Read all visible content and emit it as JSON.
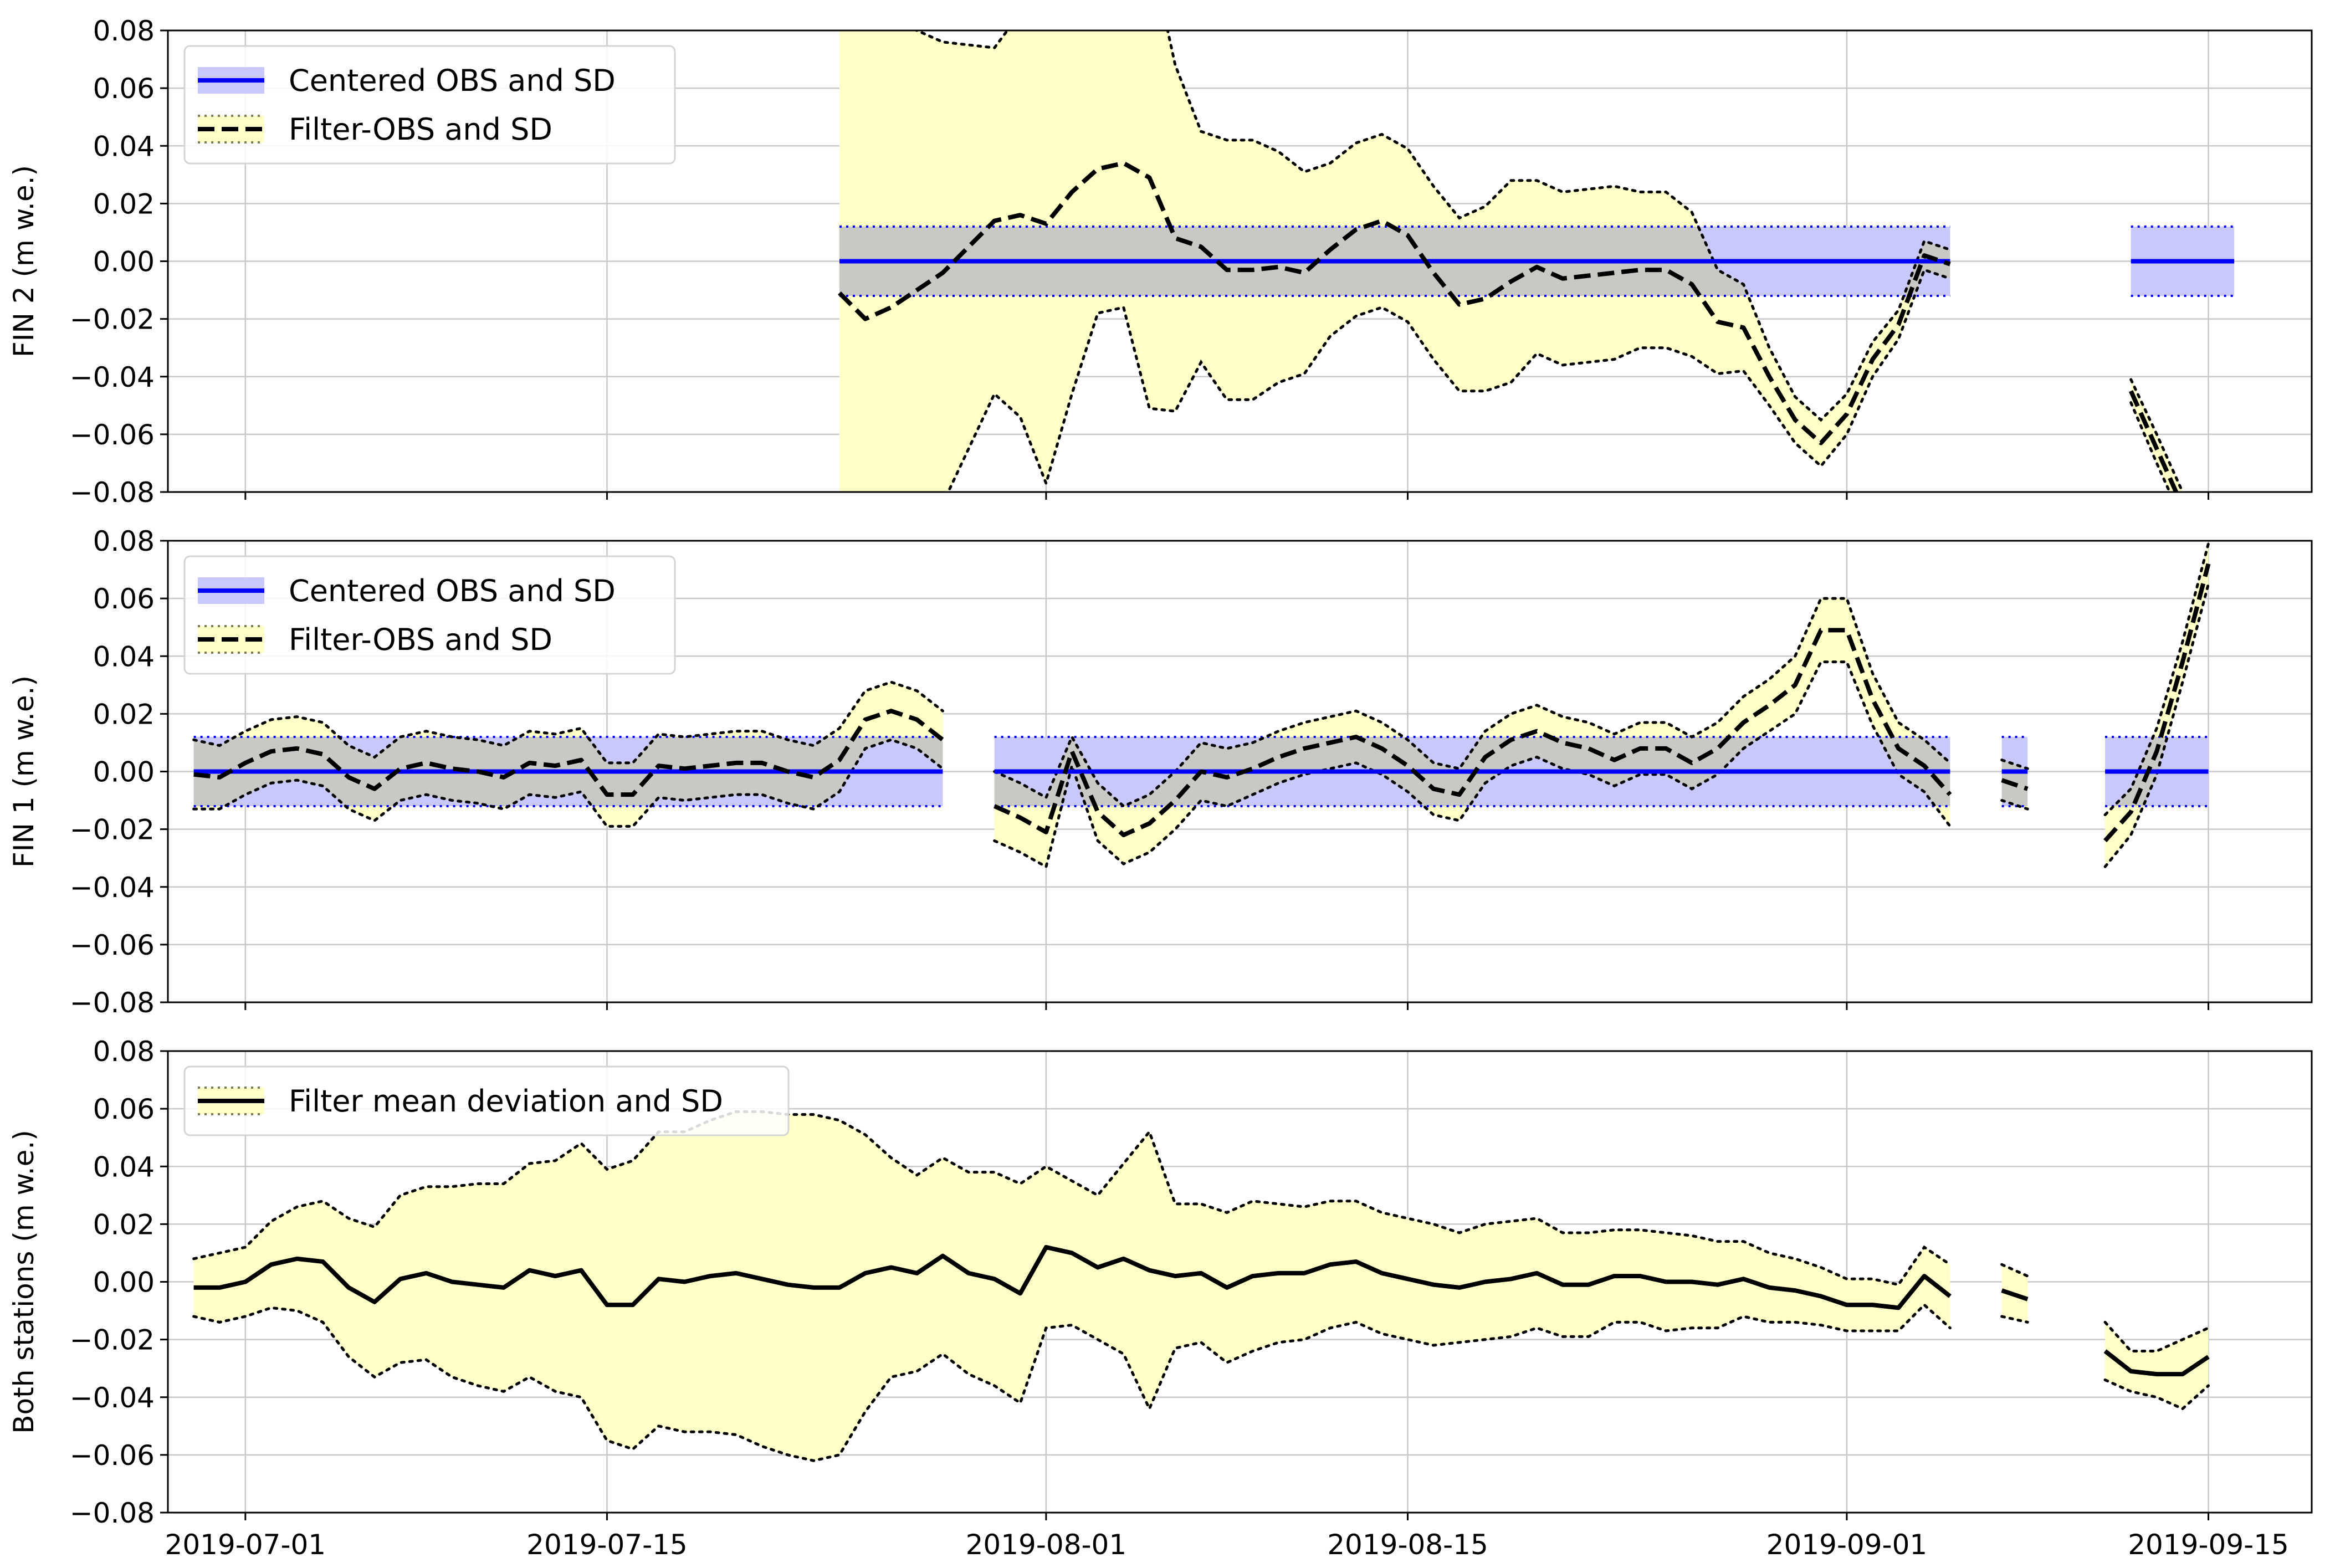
{
  "colors": {
    "centered_line": "#0000ff",
    "centered_band": "#c8c8fa",
    "filter_band": "#ffffc8",
    "overlap_band": "#d8d6c8",
    "filter_line": "#000000",
    "grid": "#c8c8c8"
  },
  "chart_data": [
    {
      "type": "line",
      "ylabel": "FIN 2 (m w.e.)",
      "ylim": [
        -0.08,
        0.08
      ],
      "yticks": [
        "0.08",
        "0.06",
        "0.04",
        "0.02",
        "0.00",
        "−0.02",
        "−0.04",
        "−0.06",
        "−0.08"
      ],
      "xlim": [
        "2019-06-28",
        "2019-09-19"
      ],
      "xticks": [
        "2019-07-01",
        "2019-07-15",
        "2019-08-01",
        "2019-08-15",
        "2019-09-01",
        "2019-09-15"
      ],
      "grid": true,
      "legend_position": "top-left",
      "legend": [
        "Centered OBS and SD",
        "Filter-OBS and SD"
      ],
      "centered_segments": [
        {
          "x": [
            "2019-07-24",
            "2019-09-05"
          ],
          "value": 0.0,
          "sd": 0.012
        },
        {
          "x": [
            "2019-09-12",
            "2019-09-16"
          ],
          "value": 0.0,
          "sd": 0.012
        }
      ],
      "filter_segments": [
        {
          "x": [
            "2019-07-24",
            "2019-07-25",
            "2019-07-26",
            "2019-07-27",
            "2019-07-28",
            "2019-07-29",
            "2019-07-30",
            "2019-07-31",
            "2019-08-01",
            "2019-08-02",
            "2019-08-03",
            "2019-08-04",
            "2019-08-05",
            "2019-08-06",
            "2019-08-07",
            "2019-08-08",
            "2019-08-09",
            "2019-08-10",
            "2019-08-11",
            "2019-08-12",
            "2019-08-13",
            "2019-08-14",
            "2019-08-15",
            "2019-08-16",
            "2019-08-17",
            "2019-08-18",
            "2019-08-19",
            "2019-08-20",
            "2019-08-21",
            "2019-08-22",
            "2019-08-23",
            "2019-08-24",
            "2019-08-25",
            "2019-08-26",
            "2019-08-27",
            "2019-08-28",
            "2019-08-29",
            "2019-08-30",
            "2019-08-31",
            "2019-09-01",
            "2019-09-02",
            "2019-09-03",
            "2019-09-04",
            "2019-09-05"
          ],
          "y": [
            -0.011,
            -0.02,
            -0.016,
            -0.01,
            -0.004,
            0.005,
            0.014,
            0.016,
            0.013,
            0.024,
            0.032,
            0.034,
            0.029,
            0.008,
            0.005,
            -0.003,
            -0.003,
            -0.002,
            -0.004,
            0.004,
            0.011,
            0.014,
            0.009,
            -0.004,
            -0.015,
            -0.013,
            -0.007,
            -0.002,
            -0.006,
            -0.005,
            -0.004,
            -0.003,
            -0.003,
            -0.008,
            -0.021,
            -0.023,
            -0.04,
            -0.055,
            -0.063,
            -0.053,
            -0.034,
            -0.022,
            0.002,
            -0.001
          ],
          "sd": [
            0.12,
            0.1,
            0.1,
            0.09,
            0.08,
            0.07,
            0.06,
            0.07,
            0.09,
            0.07,
            0.05,
            0.05,
            0.08,
            0.06,
            0.04,
            0.045,
            0.045,
            0.04,
            0.035,
            0.03,
            0.03,
            0.03,
            0.03,
            0.03,
            0.03,
            0.032,
            0.035,
            0.03,
            0.03,
            0.03,
            0.03,
            0.027,
            0.027,
            0.025,
            0.018,
            0.015,
            0.01,
            0.008,
            0.008,
            0.007,
            0.006,
            0.005,
            0.005,
            0.005
          ]
        },
        {
          "x": [
            "2019-09-12",
            "2019-09-13",
            "2019-09-14"
          ],
          "y": [
            -0.045,
            -0.065,
            -0.085
          ],
          "sd": [
            0.004,
            0.005,
            0.005
          ]
        }
      ]
    },
    {
      "type": "line",
      "ylabel": "FIN 1 (m w.e.)",
      "ylim": [
        -0.08,
        0.08
      ],
      "yticks": [
        "0.08",
        "0.06",
        "0.04",
        "0.02",
        "0.00",
        "−0.02",
        "−0.04",
        "−0.06",
        "−0.08"
      ],
      "xlim": [
        "2019-06-28",
        "2019-09-19"
      ],
      "xticks": [
        "2019-07-01",
        "2019-07-15",
        "2019-08-01",
        "2019-08-15",
        "2019-09-01",
        "2019-09-15"
      ],
      "grid": true,
      "legend_position": "top-left",
      "legend": [
        "Centered OBS and SD",
        "Filter-OBS and SD"
      ],
      "centered_segments": [
        {
          "x": [
            "2019-06-29",
            "2019-07-28"
          ],
          "value": 0.0,
          "sd": 0.012
        },
        {
          "x": [
            "2019-07-30",
            "2019-09-05"
          ],
          "value": 0.0,
          "sd": 0.012
        },
        {
          "x": [
            "2019-09-07",
            "2019-09-08"
          ],
          "value": 0.0,
          "sd": 0.012
        },
        {
          "x": [
            "2019-09-11",
            "2019-09-15"
          ],
          "value": 0.0,
          "sd": 0.012
        }
      ],
      "filter_segments": [
        {
          "x": [
            "2019-06-29",
            "2019-06-30",
            "2019-07-01",
            "2019-07-02",
            "2019-07-03",
            "2019-07-04",
            "2019-07-05",
            "2019-07-06",
            "2019-07-07",
            "2019-07-08",
            "2019-07-09",
            "2019-07-10",
            "2019-07-11",
            "2019-07-12",
            "2019-07-13",
            "2019-07-14",
            "2019-07-15",
            "2019-07-16",
            "2019-07-17",
            "2019-07-18",
            "2019-07-19",
            "2019-07-20",
            "2019-07-21",
            "2019-07-22",
            "2019-07-23",
            "2019-07-24",
            "2019-07-25",
            "2019-07-26",
            "2019-07-27",
            "2019-07-28"
          ],
          "y": [
            -0.001,
            -0.002,
            0.003,
            0.007,
            0.008,
            0.006,
            -0.002,
            -0.006,
            0.001,
            0.003,
            0.001,
            0.0,
            -0.002,
            0.003,
            0.002,
            0.004,
            -0.008,
            -0.008,
            0.002,
            0.001,
            0.002,
            0.003,
            0.003,
            0.0,
            -0.002,
            0.004,
            0.018,
            0.021,
            0.018,
            0.011
          ],
          "sd": [
            0.012,
            0.011,
            0.011,
            0.011,
            0.011,
            0.011,
            0.011,
            0.011,
            0.011,
            0.011,
            0.011,
            0.011,
            0.011,
            0.011,
            0.011,
            0.011,
            0.011,
            0.011,
            0.011,
            0.011,
            0.011,
            0.011,
            0.011,
            0.011,
            0.011,
            0.011,
            0.01,
            0.01,
            0.01,
            0.01
          ]
        },
        {
          "x": [
            "2019-07-30",
            "2019-07-31",
            "2019-08-01",
            "2019-08-02",
            "2019-08-03",
            "2019-08-04",
            "2019-08-05",
            "2019-08-06",
            "2019-08-07",
            "2019-08-08",
            "2019-08-09",
            "2019-08-10",
            "2019-08-11",
            "2019-08-12",
            "2019-08-13",
            "2019-08-14",
            "2019-08-15",
            "2019-08-16",
            "2019-08-17",
            "2019-08-18",
            "2019-08-19",
            "2019-08-20",
            "2019-08-21",
            "2019-08-22",
            "2019-08-23",
            "2019-08-24",
            "2019-08-25",
            "2019-08-26",
            "2019-08-27",
            "2019-08-28",
            "2019-08-29",
            "2019-08-30",
            "2019-08-31",
            "2019-09-01",
            "2019-09-02",
            "2019-09-03",
            "2019-09-04",
            "2019-09-05"
          ],
          "y": [
            -0.012,
            -0.016,
            -0.021,
            0.007,
            -0.014,
            -0.022,
            -0.018,
            -0.01,
            0.0,
            -0.002,
            0.001,
            0.005,
            0.008,
            0.01,
            0.012,
            0.008,
            0.002,
            -0.006,
            -0.008,
            0.005,
            0.011,
            0.014,
            0.01,
            0.008,
            0.004,
            0.008,
            0.008,
            0.003,
            0.008,
            0.017,
            0.023,
            0.03,
            0.049,
            0.049,
            0.025,
            0.008,
            0.002,
            -0.008
          ],
          "sd": [
            0.012,
            0.012,
            0.012,
            0.005,
            0.01,
            0.01,
            0.01,
            0.01,
            0.01,
            0.01,
            0.009,
            0.009,
            0.009,
            0.009,
            0.009,
            0.009,
            0.009,
            0.009,
            0.009,
            0.009,
            0.009,
            0.009,
            0.009,
            0.009,
            0.009,
            0.009,
            0.009,
            0.009,
            0.009,
            0.009,
            0.009,
            0.01,
            0.011,
            0.011,
            0.009,
            0.009,
            0.009,
            0.011
          ]
        },
        {
          "x": [
            "2019-09-07",
            "2019-09-08"
          ],
          "y": [
            -0.003,
            -0.006
          ],
          "sd": [
            0.007,
            0.007
          ]
        },
        {
          "x": [
            "2019-09-11",
            "2019-09-12",
            "2019-09-13",
            "2019-09-14",
            "2019-09-15"
          ],
          "y": [
            -0.024,
            -0.014,
            0.007,
            0.038,
            0.072
          ],
          "sd": [
            0.009,
            0.008,
            0.008,
            0.007,
            0.007
          ]
        }
      ]
    },
    {
      "type": "line",
      "ylabel": "Both stations (m w.e.)",
      "ylim": [
        -0.08,
        0.08
      ],
      "yticks": [
        "0.08",
        "0.06",
        "0.04",
        "0.02",
        "0.00",
        "−0.02",
        "−0.04",
        "−0.06",
        "−0.08"
      ],
      "xlim": [
        "2019-06-28",
        "2019-09-19"
      ],
      "xticks": [
        "2019-07-01",
        "2019-07-15",
        "2019-08-01",
        "2019-08-15",
        "2019-09-01",
        "2019-09-15"
      ],
      "grid": true,
      "legend_position": "top-left",
      "legend": [
        "Filter mean deviation and SD"
      ],
      "centered_segments": [],
      "filter_segments": [
        {
          "x": [
            "2019-06-29",
            "2019-06-30",
            "2019-07-01",
            "2019-07-02",
            "2019-07-03",
            "2019-07-04",
            "2019-07-05",
            "2019-07-06",
            "2019-07-07",
            "2019-07-08",
            "2019-07-09",
            "2019-07-10",
            "2019-07-11",
            "2019-07-12",
            "2019-07-13",
            "2019-07-14",
            "2019-07-15",
            "2019-07-16",
            "2019-07-17",
            "2019-07-18",
            "2019-07-19",
            "2019-07-20",
            "2019-07-21",
            "2019-07-22",
            "2019-07-23",
            "2019-07-24",
            "2019-07-25",
            "2019-07-26",
            "2019-07-27",
            "2019-07-28",
            "2019-07-29",
            "2019-07-30",
            "2019-07-31",
            "2019-08-01",
            "2019-08-02",
            "2019-08-03",
            "2019-08-04",
            "2019-08-05",
            "2019-08-06",
            "2019-08-07",
            "2019-08-08",
            "2019-08-09",
            "2019-08-10",
            "2019-08-11",
            "2019-08-12",
            "2019-08-13",
            "2019-08-14",
            "2019-08-15",
            "2019-08-16",
            "2019-08-17",
            "2019-08-18",
            "2019-08-19",
            "2019-08-20",
            "2019-08-21",
            "2019-08-22",
            "2019-08-23",
            "2019-08-24",
            "2019-08-25",
            "2019-08-26",
            "2019-08-27",
            "2019-08-28",
            "2019-08-29",
            "2019-08-30",
            "2019-08-31",
            "2019-09-01",
            "2019-09-02",
            "2019-09-03",
            "2019-09-04",
            "2019-09-05"
          ],
          "y": [
            -0.002,
            -0.002,
            0.0,
            0.006,
            0.008,
            0.007,
            -0.002,
            -0.007,
            0.001,
            0.003,
            0.0,
            -0.001,
            -0.002,
            0.004,
            0.002,
            0.004,
            -0.008,
            -0.008,
            0.001,
            0.0,
            0.002,
            0.003,
            0.001,
            -0.001,
            -0.002,
            -0.002,
            0.003,
            0.005,
            0.003,
            0.009,
            0.003,
            0.001,
            -0.004,
            0.012,
            0.01,
            0.005,
            0.008,
            0.004,
            0.002,
            0.003,
            -0.002,
            0.002,
            0.003,
            0.003,
            0.006,
            0.007,
            0.003,
            0.001,
            -0.001,
            -0.002,
            0.0,
            0.001,
            0.003,
            -0.001,
            -0.001,
            0.002,
            0.002,
            0.0,
            0.0,
            -0.001,
            0.001,
            -0.002,
            -0.003,
            -0.005,
            -0.008,
            -0.008,
            -0.009,
            0.002,
            -0.005
          ],
          "sd": [
            0.01,
            0.012,
            0.012,
            0.015,
            0.018,
            0.021,
            0.024,
            0.026,
            0.029,
            0.03,
            0.033,
            0.035,
            0.036,
            0.037,
            0.04,
            0.044,
            0.047,
            0.05,
            0.051,
            0.052,
            0.054,
            0.056,
            0.058,
            0.059,
            0.06,
            0.058,
            0.048,
            0.038,
            0.034,
            0.034,
            0.035,
            0.037,
            0.038,
            0.028,
            0.025,
            0.025,
            0.033,
            0.048,
            0.025,
            0.024,
            0.026,
            0.026,
            0.024,
            0.023,
            0.022,
            0.021,
            0.021,
            0.021,
            0.021,
            0.019,
            0.02,
            0.02,
            0.019,
            0.018,
            0.018,
            0.016,
            0.016,
            0.017,
            0.016,
            0.015,
            0.013,
            0.012,
            0.011,
            0.01,
            0.009,
            0.009,
            0.008,
            0.01,
            0.011
          ]
        },
        {
          "x": [
            "2019-09-07",
            "2019-09-08"
          ],
          "y": [
            -0.003,
            -0.006
          ],
          "sd": [
            0.009,
            0.008
          ]
        },
        {
          "x": [
            "2019-09-11",
            "2019-09-12",
            "2019-09-13",
            "2019-09-14",
            "2019-09-15"
          ],
          "y": [
            -0.024,
            -0.031,
            -0.032,
            -0.032,
            -0.026
          ],
          "sd": [
            0.01,
            0.007,
            0.008,
            0.012,
            0.01
          ]
        }
      ]
    }
  ]
}
